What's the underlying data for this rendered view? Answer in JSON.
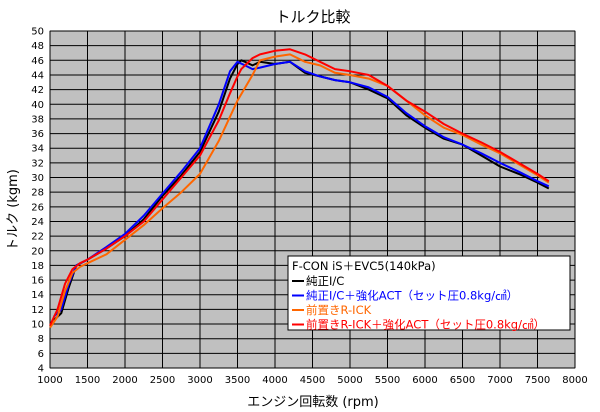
{
  "chart_data": {
    "type": "line",
    "title": "トルク比較",
    "xlabel": "エンジン回転数 (rpm)",
    "ylabel": "トルク (kgm)",
    "xlim": [
      1000,
      8000
    ],
    "ylim": [
      4,
      50
    ],
    "xticks": [
      1000,
      1500,
      2000,
      2500,
      3000,
      3500,
      4000,
      4500,
      5000,
      5500,
      6000,
      6500,
      7000,
      7500,
      8000
    ],
    "yticks": [
      4,
      6,
      8,
      10,
      12,
      14,
      16,
      18,
      20,
      22,
      24,
      26,
      28,
      30,
      32,
      34,
      36,
      38,
      40,
      42,
      44,
      46,
      48,
      50
    ],
    "grid": true,
    "plot_background": "#c0c0c0",
    "legend_title": "F-CON iS＋EVC5(140kPa)",
    "legend_position": "lower-right",
    "series": [
      {
        "name": "純正I/C",
        "color": "#000000",
        "x": [
          1050,
          1150,
          1250,
          1350,
          1500,
          1750,
          2000,
          2250,
          2500,
          2750,
          3000,
          3250,
          3400,
          3500,
          3550,
          3600,
          3700,
          3800,
          4000,
          4200,
          4400,
          4600,
          4800,
          5000,
          5250,
          5500,
          5750,
          6000,
          6250,
          6500,
          6750,
          7000,
          7250,
          7500,
          7650
        ],
        "y": [
          10.5,
          11.5,
          15,
          18,
          18.8,
          20.3,
          22,
          24.3,
          27.5,
          30.3,
          33.5,
          39,
          43.5,
          45.5,
          46,
          45.8,
          45.3,
          45.8,
          45.5,
          45.8,
          44.3,
          43.8,
          43.3,
          43,
          42,
          40.8,
          38.5,
          36.8,
          35.3,
          34.5,
          33,
          31.5,
          30.5,
          29.3,
          28.5
        ]
      },
      {
        "name": "純正I/C＋強化ACT（セット圧0.8kg/㎠）",
        "color": "#0000ff",
        "x": [
          1050,
          1150,
          1250,
          1350,
          1500,
          1750,
          2000,
          2250,
          2500,
          2750,
          3000,
          3250,
          3400,
          3500,
          3600,
          3700,
          3800,
          4000,
          4200,
          4400,
          4600,
          4800,
          5000,
          5250,
          5500,
          5750,
          6000,
          6250,
          6500,
          6750,
          7000,
          7250,
          7500,
          7650
        ],
        "y": [
          11,
          12,
          15.5,
          18,
          18.8,
          20.5,
          22.3,
          24.8,
          27.8,
          30.8,
          34,
          40,
          44.5,
          45.8,
          45.3,
          44.8,
          45,
          45.5,
          45.8,
          44.5,
          43.8,
          43.3,
          43,
          42.3,
          41,
          38.8,
          37,
          35.5,
          34.5,
          33.3,
          32,
          30.8,
          29.5,
          28.8
        ]
      },
      {
        "name": "前置きR-ICK",
        "color": "#ff6600",
        "x": [
          1000,
          1100,
          1200,
          1300,
          1400,
          1500,
          1750,
          2000,
          2250,
          2500,
          2750,
          3000,
          3250,
          3500,
          3700,
          3800,
          4000,
          4200,
          4400,
          4600,
          4800,
          5000,
          5250,
          5500,
          5750,
          6000,
          6250,
          6500,
          6750,
          7000,
          7250,
          7500,
          7650
        ],
        "y": [
          9.5,
          11,
          14.5,
          17,
          17.8,
          18.3,
          19.5,
          21.5,
          23.5,
          25.8,
          28,
          30.5,
          35,
          40.5,
          44,
          46,
          46.5,
          46.8,
          45.8,
          45.3,
          44.3,
          44,
          43.5,
          42.5,
          40.5,
          38.5,
          36.8,
          35.8,
          34.5,
          33.3,
          31.8,
          30.3,
          29.3
        ]
      },
      {
        "name": "前置きR-ICK＋強化ACT（セット圧0.8kg/㎠）",
        "color": "#ff0000",
        "x": [
          1000,
          1100,
          1200,
          1300,
          1400,
          1500,
          1750,
          2000,
          2250,
          2500,
          2750,
          3000,
          3250,
          3400,
          3500,
          3550,
          3600,
          3700,
          3800,
          4000,
          4200,
          4400,
          4600,
          4800,
          5000,
          5250,
          5500,
          5750,
          6000,
          6250,
          6500,
          6750,
          7000,
          7250,
          7500,
          7650
        ],
        "y": [
          9.8,
          12,
          15.5,
          17.5,
          18.3,
          18.8,
          20.3,
          22,
          24,
          27,
          30,
          33,
          37.8,
          41.5,
          43.8,
          44.8,
          45.3,
          46.3,
          46.8,
          47.3,
          47.5,
          46.8,
          45.8,
          44.8,
          44.5,
          44,
          42.5,
          40.5,
          39,
          37.3,
          36,
          34.8,
          33.5,
          32,
          30.5,
          29.5
        ]
      }
    ]
  }
}
